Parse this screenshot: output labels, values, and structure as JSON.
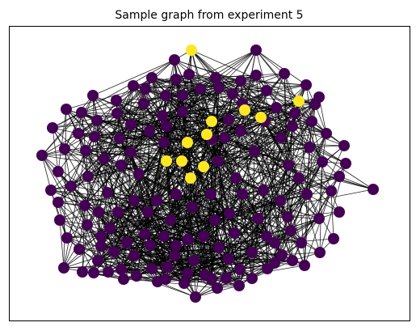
{
  "graph": {
    "title": "Sample graph from experiment 5",
    "node_count": 150,
    "highlighted_node_count": 11,
    "colors": {
      "background": "#ffffff",
      "edge": "#000000",
      "node_default": "#440154",
      "node_highlighted": "#fde725"
    },
    "colormap": "viridis"
  }
}
